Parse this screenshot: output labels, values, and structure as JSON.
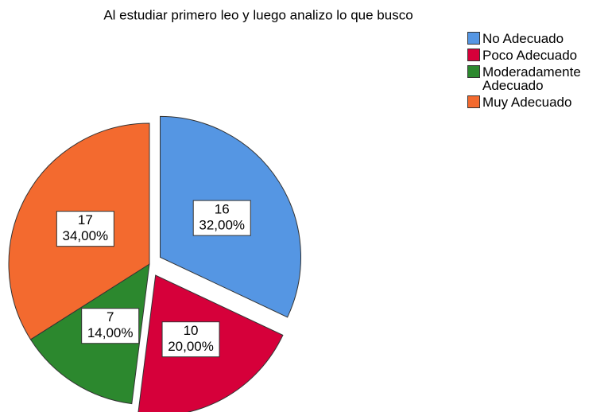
{
  "chart_data": {
    "type": "pie",
    "title": "Al estudiar primero leo y luego analizo lo que busco",
    "categories": [
      "No Adecuado",
      "Poco Adecuado",
      "Moderadamente Adecuado",
      "Muy Adecuado"
    ],
    "values": [
      16,
      10,
      7,
      17
    ],
    "percent_values": [
      32,
      20,
      14,
      34
    ],
    "percent_labels": [
      "32,00%",
      "20,00%",
      "14,00%",
      "34,00%"
    ],
    "colors": [
      "#5596e3",
      "#d6003a",
      "#2c882e",
      "#f36a2f"
    ],
    "exploded": [
      true,
      true,
      false,
      false
    ],
    "legend": "right"
  }
}
